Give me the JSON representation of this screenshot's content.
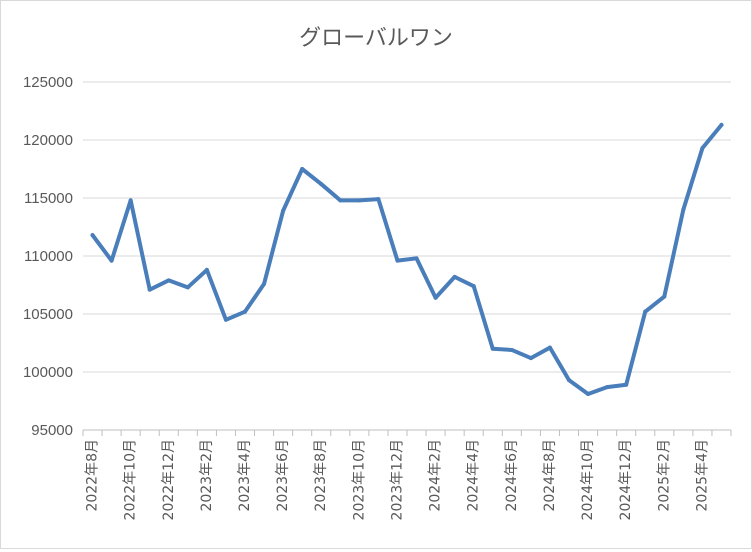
{
  "chart_data": {
    "type": "line",
    "title": "グローバルワン",
    "xlabel": "",
    "ylabel": "",
    "ylim": [
      95000,
      125000
    ],
    "yticks": [
      95000,
      100000,
      105000,
      110000,
      115000,
      120000,
      125000
    ],
    "grid": true,
    "legend": "none",
    "categories": [
      "2022年8月",
      "2022年9月",
      "2022年10月",
      "2022年11月",
      "2022年12月",
      "2023年1月",
      "2023年2月",
      "2023年3月",
      "2023年4月",
      "2023年5月",
      "2023年6月",
      "2023年7月",
      "2023年8月",
      "2023年9月",
      "2023年10月",
      "2023年11月",
      "2023年12月",
      "2024年1月",
      "2024年2月",
      "2024年3月",
      "2024年4月",
      "2024年5月",
      "2024年6月",
      "2024年7月",
      "2024年8月",
      "2024年9月",
      "2024年10月",
      "2024年11月",
      "2024年12月",
      "2025年1月",
      "2025年2月",
      "2025年3月",
      "2025年4月",
      "2025年5月"
    ],
    "tick_labels": [
      "2022年8月",
      "2022年10月",
      "2022年12月",
      "2023年2月",
      "2023年4月",
      "2023年6月",
      "2023年8月",
      "2023年10月",
      "2023年12月",
      "2024年2月",
      "2024年4月",
      "2024年6月",
      "2024年8月",
      "2024年10月",
      "2024年12月",
      "2025年2月",
      "2025年4月"
    ],
    "series": [
      {
        "name": "",
        "color": "#4a7ebb",
        "values": [
          111800,
          109600,
          114800,
          107100,
          107900,
          107300,
          108800,
          104500,
          105200,
          107600,
          113900,
          117500,
          116200,
          114800,
          114800,
          114900,
          109600,
          109800,
          106400,
          108200,
          107400,
          102000,
          101900,
          101200,
          102100,
          99300,
          98100,
          98700,
          98900,
          105200,
          106500,
          114000,
          119300,
          121300
        ]
      }
    ]
  }
}
